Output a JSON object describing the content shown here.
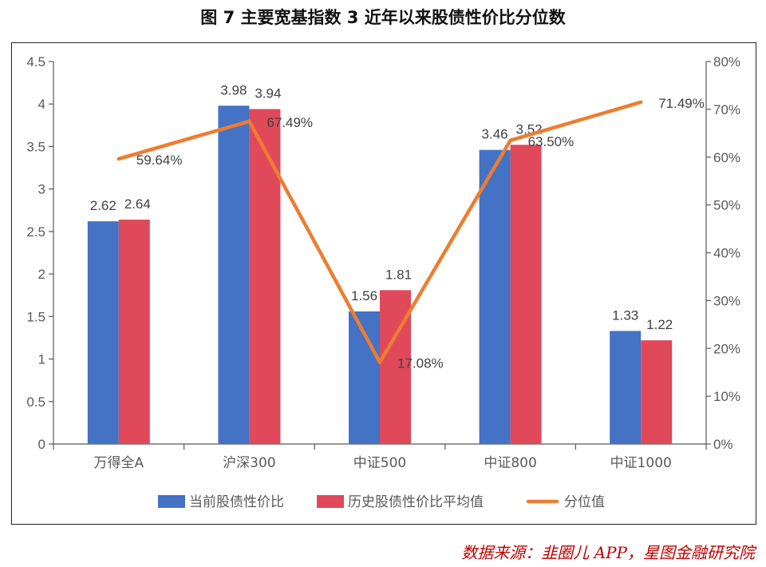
{
  "title": "图 7 主要宽基指数 3 近年以来股债性价比分位数",
  "source": "数据来源：韭圈儿 APP，星图金融研究院",
  "colors": {
    "current": "#4472c4",
    "history": "#e0495a",
    "percentile": "#ed7d31"
  },
  "chart_data": {
    "type": "bar",
    "categories": [
      "万得全A",
      "沪深300",
      "中证500",
      "中证800",
      "中证1000"
    ],
    "series": [
      {
        "name": "当前股债性价比",
        "type": "bar",
        "axis": "left",
        "values": [
          2.62,
          3.98,
          1.56,
          3.46,
          1.33
        ],
        "labels": [
          "2.62",
          "3.98",
          "1.56",
          "3.46",
          "1.33"
        ]
      },
      {
        "name": "历史股债性价比平均值",
        "type": "bar",
        "axis": "left",
        "values": [
          2.64,
          3.94,
          1.81,
          3.52,
          1.22
        ],
        "labels": [
          "2.64",
          "3.94",
          "1.81",
          "3.52",
          "1.22"
        ]
      },
      {
        "name": "分位值",
        "type": "line",
        "axis": "right",
        "values": [
          59.64,
          67.49,
          17.08,
          63.5,
          71.49
        ],
        "labels": [
          "59.64%",
          "67.49%",
          "17.08%",
          "63.50%",
          "71.49%"
        ]
      }
    ],
    "ylim_left": [
      0,
      4.5
    ],
    "yticks_left": [
      "0",
      "0.5",
      "1",
      "1.5",
      "2",
      "2.5",
      "3",
      "3.5",
      "4",
      "4.5"
    ],
    "ylim_right": [
      0,
      80
    ],
    "yticks_right": [
      "0%",
      "10%",
      "20%",
      "30%",
      "40%",
      "50%",
      "60%",
      "70%",
      "80%"
    ],
    "grid": false,
    "legend_position": "bottom"
  }
}
